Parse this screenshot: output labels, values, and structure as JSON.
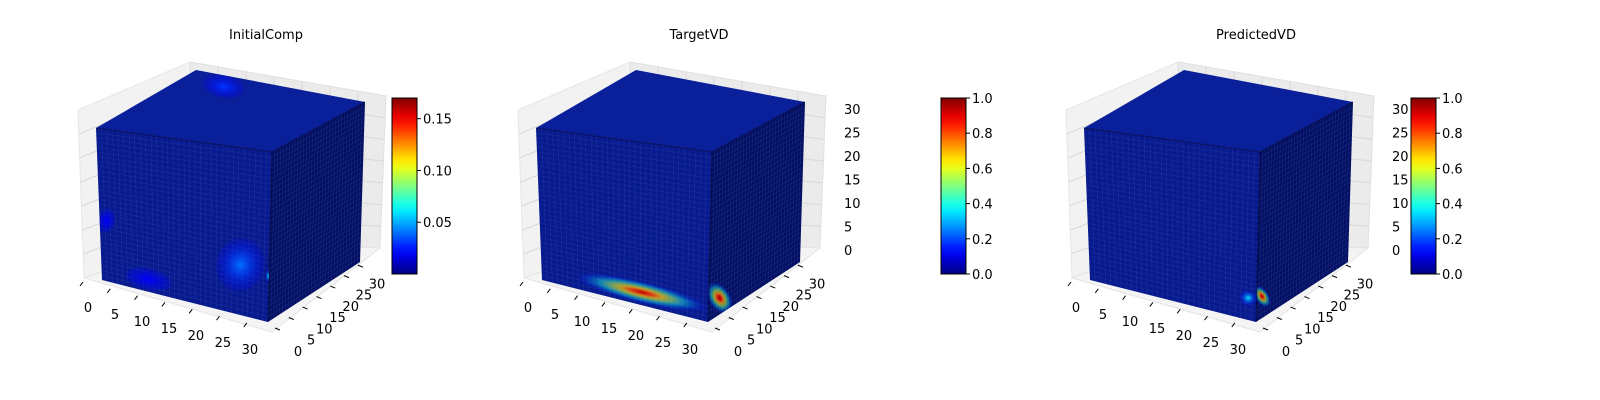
{
  "chart_data": [
    {
      "type": "voxel-3d",
      "title": "InitialComp",
      "axes": {
        "x_ticks": [
          "0",
          "5",
          "10",
          "15",
          "20",
          "25",
          "30"
        ],
        "y_ticks": [
          "0",
          "5",
          "10",
          "15",
          "20",
          "25",
          "30"
        ],
        "z_ticks": []
      },
      "colorbar": {
        "colormap": "jet",
        "range": [
          0.0,
          0.17
        ],
        "ticks": [
          "0.05",
          "0.10",
          "0.15"
        ],
        "tick_values": [
          0.05,
          0.1,
          0.15
        ]
      },
      "regions": [
        {
          "name": "blob-top-back",
          "face": "top",
          "u": 0.25,
          "v": 0.85,
          "ru": 0.12,
          "rv": 0.1,
          "value": 0.03
        },
        {
          "name": "blob-front-right",
          "face": "front",
          "u": 0.83,
          "v": 0.3,
          "ru": 0.14,
          "rv": 0.16,
          "value": 0.04
        },
        {
          "name": "blob-front-left-low",
          "face": "front",
          "u": 0.28,
          "v": 0.08,
          "ru": 0.14,
          "rv": 0.07,
          "value": 0.02
        },
        {
          "name": "blob-front-left-edge",
          "face": "front",
          "u": 0.04,
          "v": 0.4,
          "ru": 0.05,
          "rv": 0.08,
          "value": 0.02
        },
        {
          "name": "spot-front-right-edge",
          "face": "front",
          "u": 1.0,
          "v": 0.27,
          "ru": 0.04,
          "rv": 0.04,
          "value": 0.07
        }
      ]
    },
    {
      "type": "voxel-3d",
      "title": "TargetVD",
      "axes": {
        "x_ticks": [
          "0",
          "5",
          "10",
          "15",
          "20",
          "25",
          "30"
        ],
        "y_ticks": [
          "0",
          "5",
          "10",
          "15",
          "20",
          "25",
          "30"
        ],
        "z_ticks": [
          "0",
          "5",
          "10",
          "15",
          "20",
          "25",
          "30"
        ]
      },
      "colorbar": {
        "colormap": "jet",
        "range": [
          0.0,
          1.0
        ],
        "ticks": [
          "0.0",
          "0.2",
          "0.4",
          "0.6",
          "0.8",
          "1.0"
        ],
        "tick_values": [
          0.0,
          0.2,
          0.4,
          0.6,
          0.8,
          1.0
        ]
      },
      "regions": [
        {
          "name": "streak-front-bottom",
          "face": "front",
          "u": 0.6,
          "v": 0.08,
          "ru": 0.38,
          "rv": 0.065,
          "value": 0.95
        },
        {
          "name": "blob-side-bottom",
          "face": "side",
          "u": 0.12,
          "v": 0.1,
          "ru": 0.1,
          "rv": 0.1,
          "value": 1.0
        }
      ]
    },
    {
      "type": "voxel-3d",
      "title": "PredictedVD",
      "axes": {
        "x_ticks": [
          "0",
          "5",
          "10",
          "15",
          "20",
          "25",
          "30"
        ],
        "y_ticks": [
          "0",
          "5",
          "10",
          "15",
          "20",
          "25",
          "30"
        ],
        "z_ticks": [
          "0",
          "5",
          "10",
          "15",
          "20",
          "25",
          "30"
        ]
      },
      "colorbar": {
        "colormap": "jet",
        "range": [
          0.0,
          1.0
        ],
        "ticks": [
          "0.0",
          "0.2",
          "0.4",
          "0.6",
          "0.8",
          "1.0"
        ],
        "tick_values": [
          0.0,
          0.2,
          0.4,
          0.6,
          0.8,
          1.0
        ]
      },
      "regions": [
        {
          "name": "spot-front-right-bottom",
          "face": "front",
          "u": 0.95,
          "v": 0.13,
          "ru": 0.055,
          "rv": 0.045,
          "value": 0.35
        },
        {
          "name": "spot-side-bottom",
          "face": "side",
          "u": 0.06,
          "v": 0.13,
          "ru": 0.06,
          "rv": 0.07,
          "value": 1.0
        }
      ]
    }
  ]
}
